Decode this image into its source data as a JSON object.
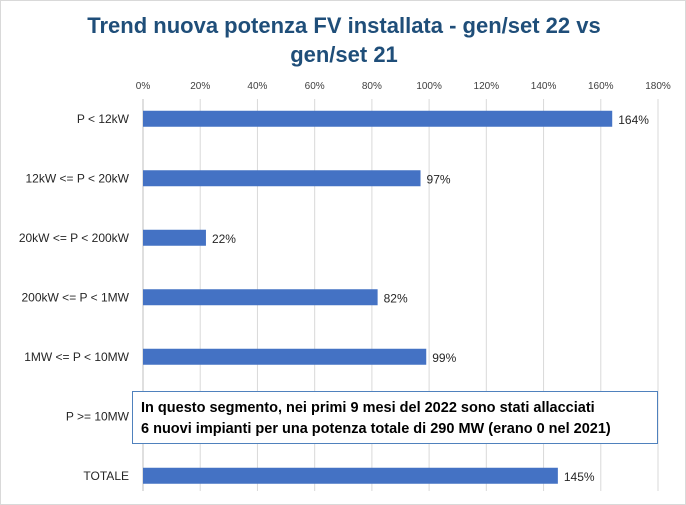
{
  "chart_data": {
    "type": "bar",
    "orientation": "horizontal",
    "title_lines": [
      "Trend nuova potenza FV installata - gen/set 22 vs",
      "gen/set 21"
    ],
    "categories": [
      "P < 12kW",
      "12kW <= P < 20kW",
      "20kW <= P < 200kW",
      "200kW <= P < 1MW",
      "1MW <= P < 10MW",
      "P >= 10MW",
      "TOTALE"
    ],
    "values": [
      164,
      97,
      22,
      82,
      99,
      null,
      145
    ],
    "data_labels": [
      "164%",
      "97%",
      "22%",
      "82%",
      "99%",
      "",
      "145%"
    ],
    "xlim": [
      0,
      180
    ],
    "xticks": [
      "0%",
      "20%",
      "40%",
      "60%",
      "80%",
      "100%",
      "120%",
      "140%",
      "160%",
      "180%"
    ],
    "x_axis_position": "top",
    "grid": true,
    "bar_color": "#4472c4",
    "annotation": {
      "lines": [
        "In questo segmento, nei primi 9 mesi del 2022 sono stati allacciati",
        "6 nuovi impianti per una potenza totale di 290 MW (erano 0 nel 2021)"
      ]
    }
  }
}
